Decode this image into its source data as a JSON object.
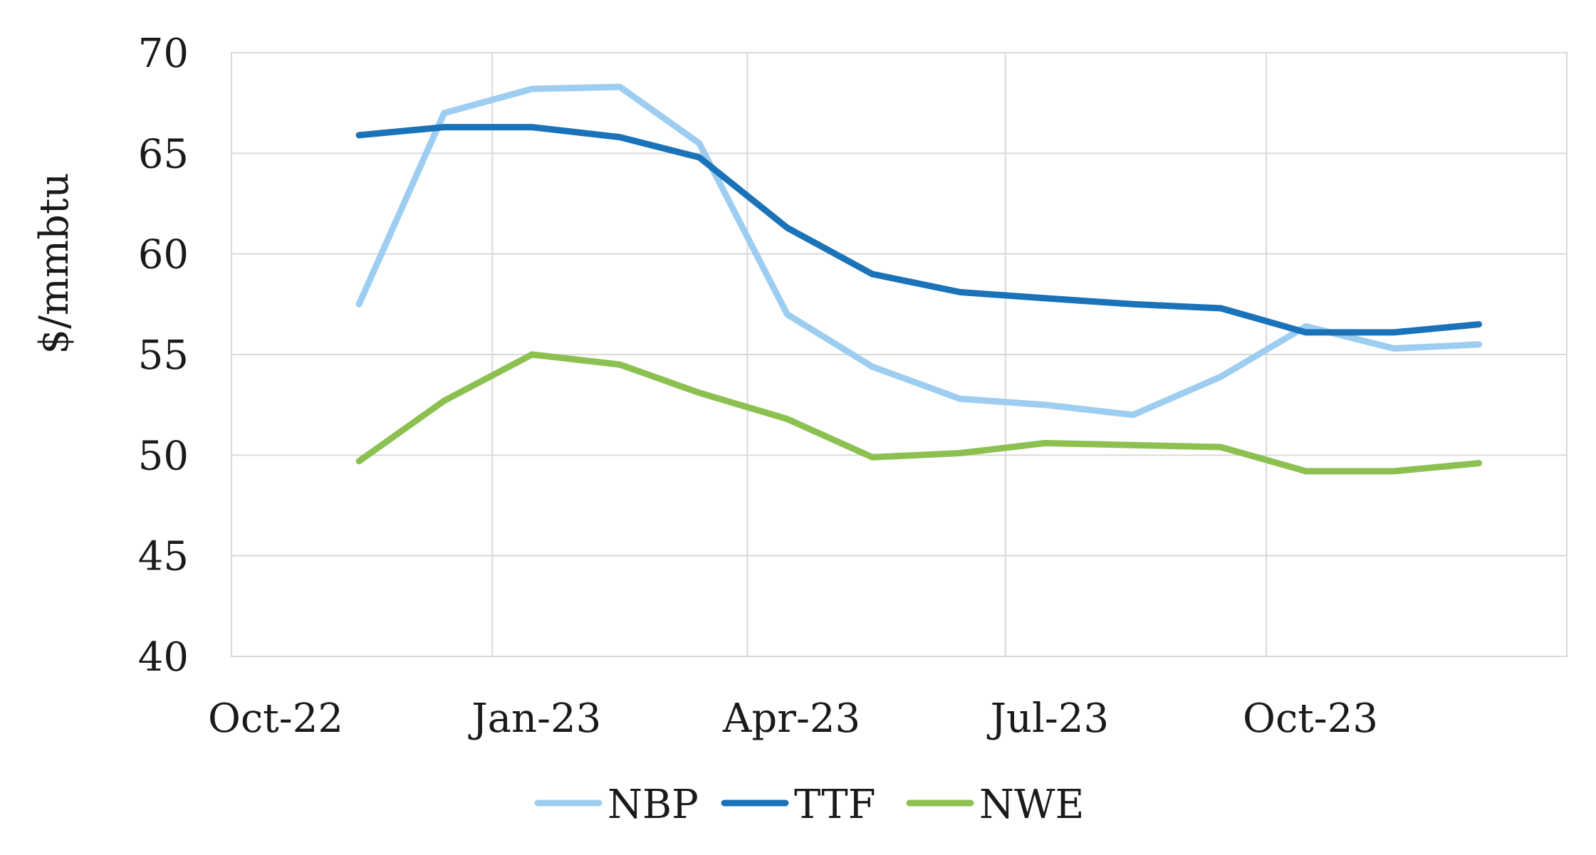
{
  "chart_data": {
    "type": "line",
    "title": "",
    "xlabel": "",
    "ylabel": "$/mmbtu",
    "ylim": [
      40,
      70
    ],
    "yticks": [
      "70",
      "65",
      "60",
      "55",
      "50",
      "45",
      "40"
    ],
    "xlim": [
      "2022-10-01",
      "2024-01-15"
    ],
    "xticks": [
      {
        "date": "2022-10-01",
        "label": "Oct-22"
      },
      {
        "date": "2023-01-01",
        "label": "Jan-23"
      },
      {
        "date": "2023-04-01",
        "label": "Apr-23"
      },
      {
        "date": "2023-07-01",
        "label": "Jul-23"
      },
      {
        "date": "2023-10-01",
        "label": "Oct-23"
      }
    ],
    "x": [
      "2022-11-15",
      "2022-12-15",
      "2023-01-15",
      "2023-02-15",
      "2023-03-15",
      "2023-04-15",
      "2023-05-15",
      "2023-06-15",
      "2023-07-15",
      "2023-08-15",
      "2023-09-15",
      "2023-10-15",
      "2023-11-15",
      "2023-12-15"
    ],
    "grid": true,
    "legend_position": "bottom",
    "series": [
      {
        "name": "NBP",
        "color": "#9dcdf0",
        "values": [
          57.5,
          67.0,
          68.2,
          68.3,
          65.5,
          57.0,
          54.4,
          52.8,
          52.5,
          52.0,
          53.9,
          56.4,
          55.3,
          55.5
        ]
      },
      {
        "name": "TTF",
        "color": "#1a72b8",
        "values": [
          65.9,
          66.3,
          66.3,
          65.8,
          64.8,
          61.3,
          59.0,
          58.1,
          57.8,
          57.5,
          57.3,
          56.1,
          56.1,
          56.5
        ]
      },
      {
        "name": "NWE",
        "color": "#8cc152",
        "values": [
          49.7,
          52.7,
          55.0,
          54.5,
          53.1,
          51.8,
          49.9,
          50.1,
          50.6,
          50.5,
          50.4,
          49.2,
          49.2,
          49.6
        ]
      }
    ]
  }
}
